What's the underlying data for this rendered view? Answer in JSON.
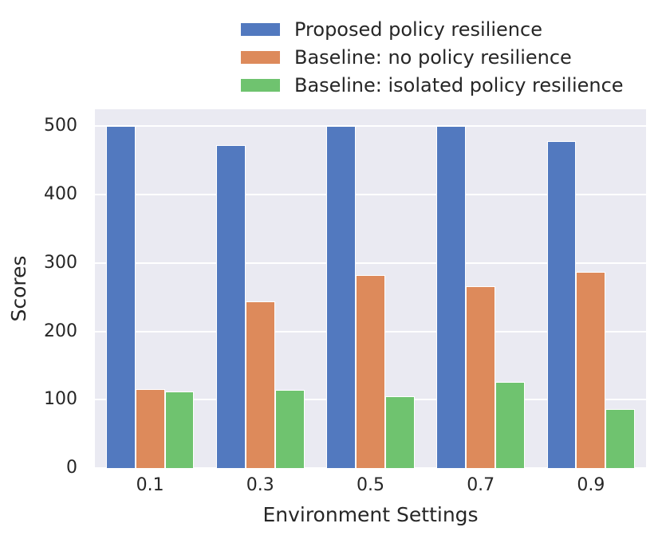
{
  "chart_data": {
    "type": "bar",
    "title": "",
    "xlabel": "Environment Settings",
    "ylabel": "Scores",
    "categories": [
      "0.1",
      "0.3",
      "0.5",
      "0.7",
      "0.9"
    ],
    "series": [
      {
        "name": "Proposed policy resilience",
        "color": "#5279BF",
        "values": [
          500,
          472,
          500,
          500,
          478
        ]
      },
      {
        "name": "Baseline: no policy resilience",
        "color": "#DD8A5B",
        "values": [
          116,
          244,
          282,
          266,
          287
        ]
      },
      {
        "name": "Baseline: isolated policy resilience",
        "color": "#6FC36F",
        "values": [
          112,
          114,
          105,
          126,
          86
        ]
      }
    ],
    "yticks": [
      0,
      100,
      200,
      300,
      400,
      500
    ],
    "ylim": [
      0,
      525
    ],
    "grid": true,
    "legend_position": "top-center",
    "plot_bg": "#EAEAF2",
    "figure_bg": "#FFFFFF",
    "gridline_color": "#FFFFFF",
    "text_color": "#262626",
    "bar_edge_color": "#FFFFFF"
  }
}
